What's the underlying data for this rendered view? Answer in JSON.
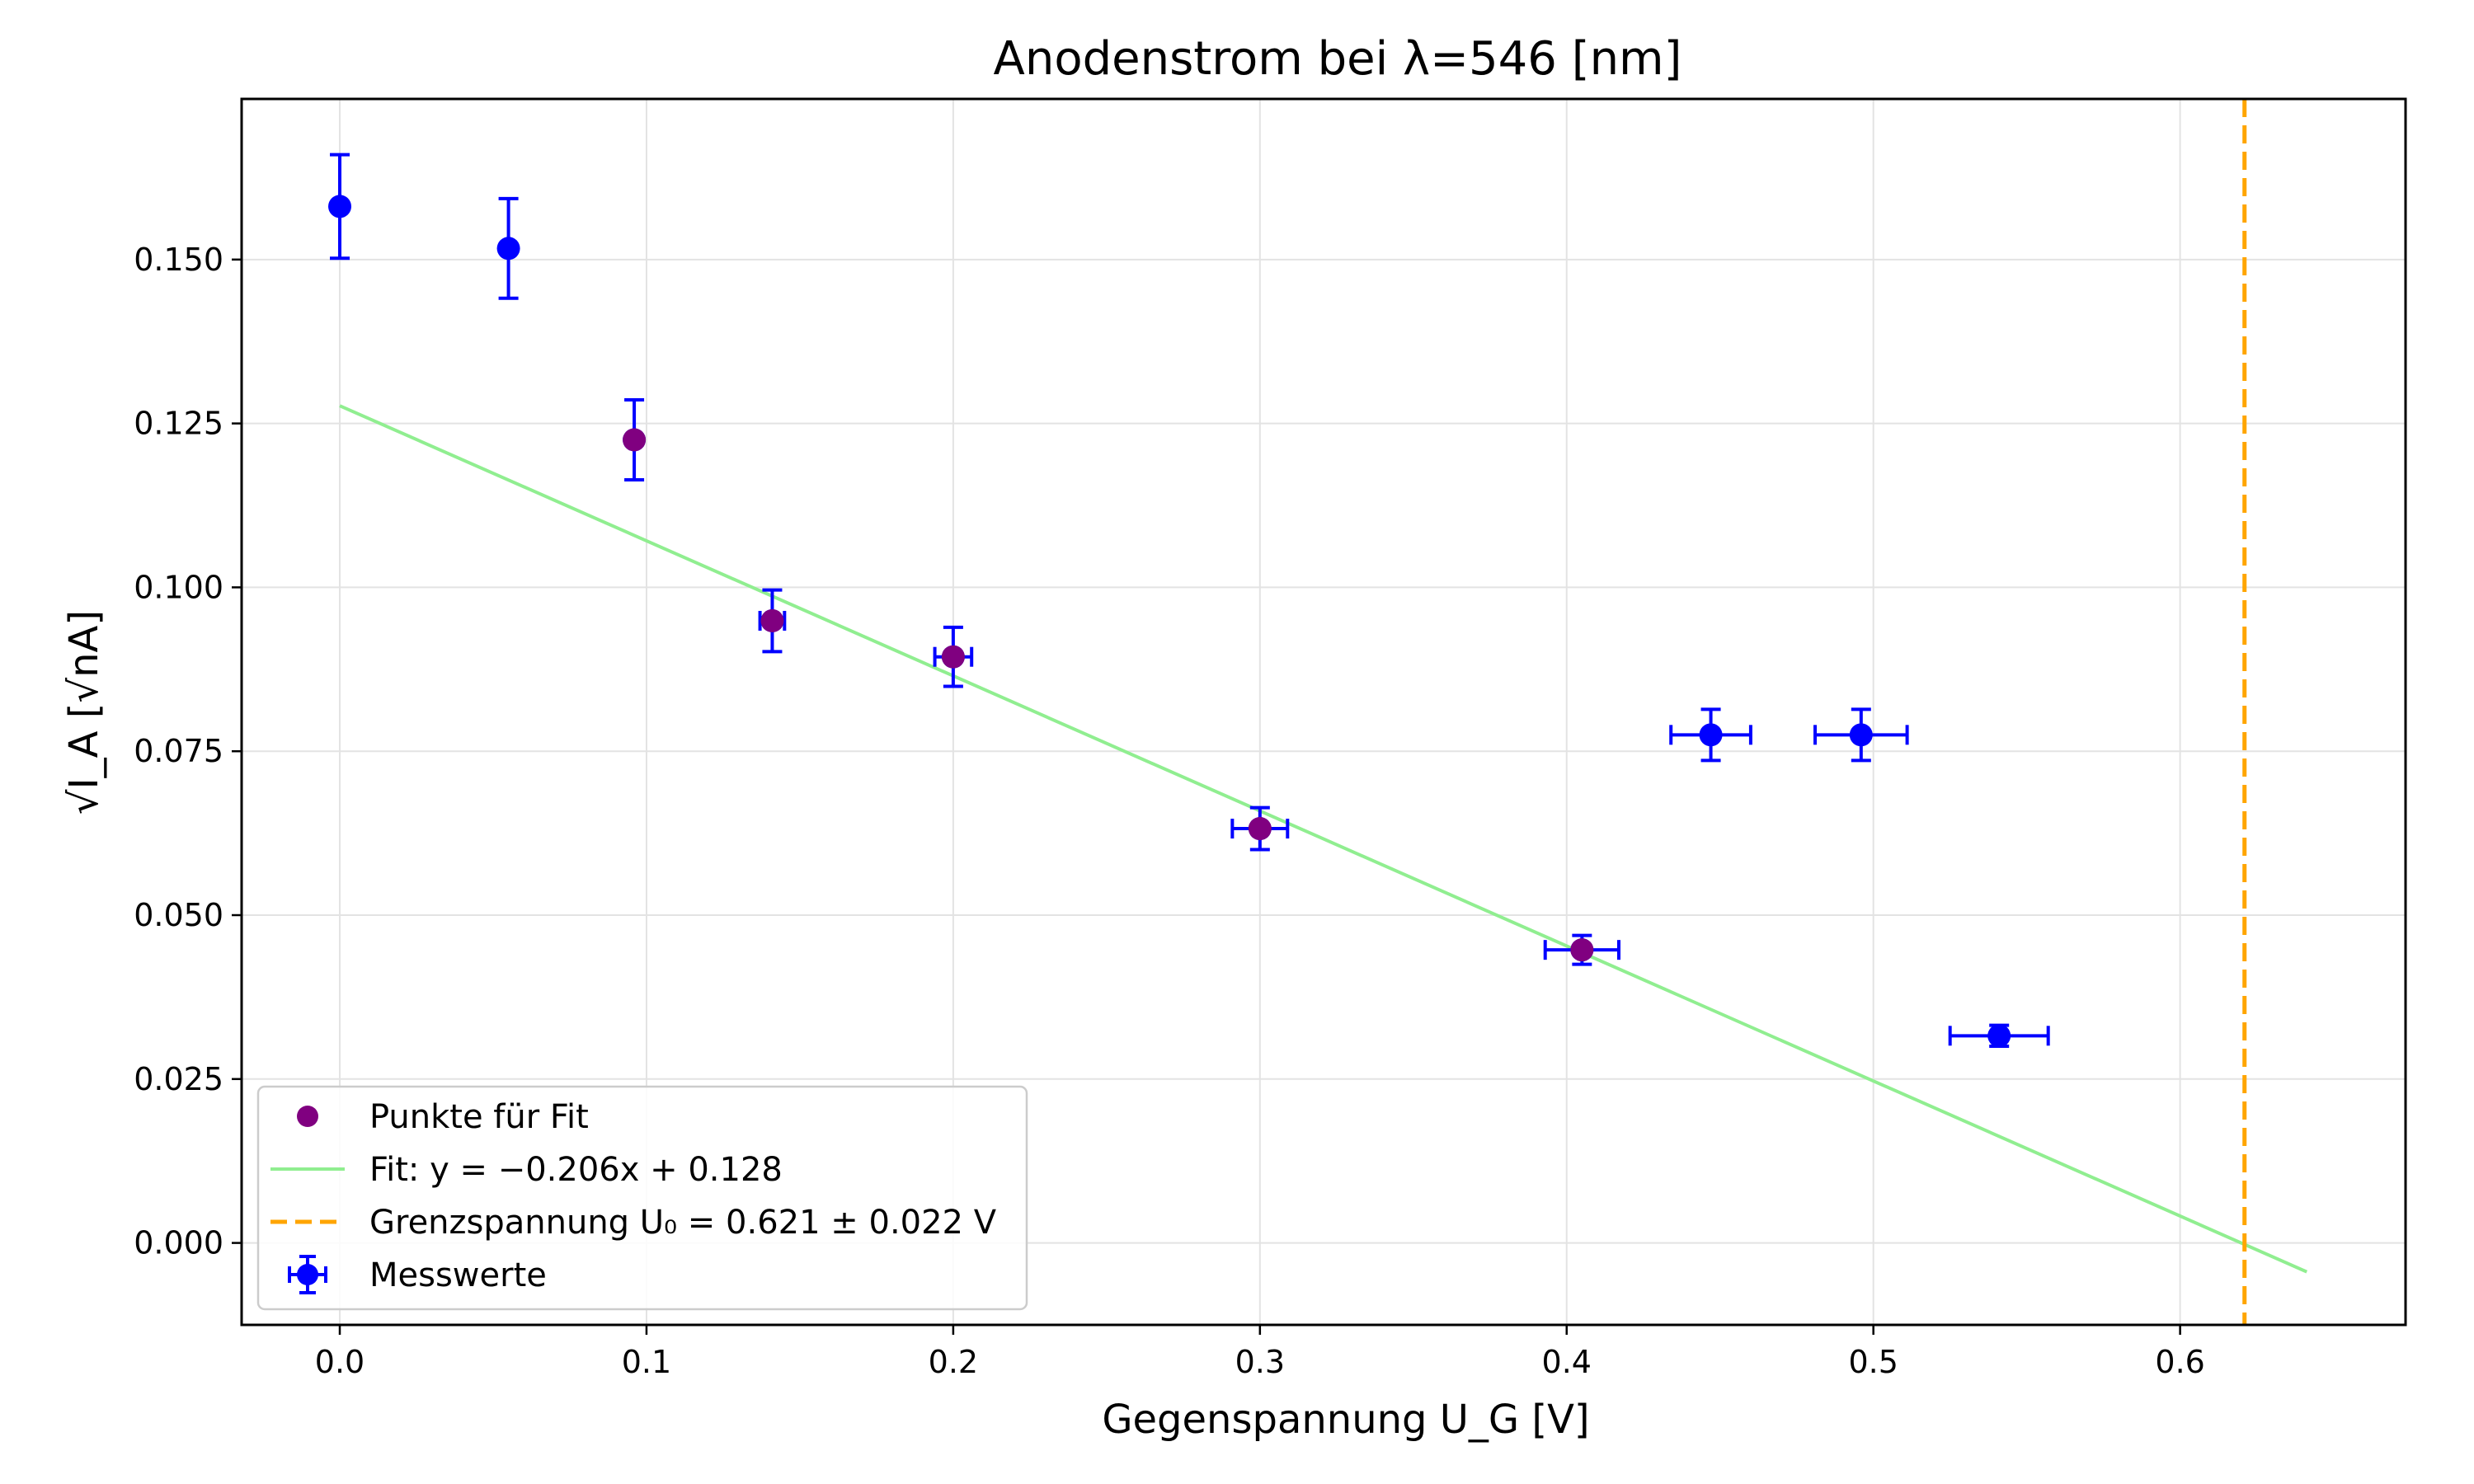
{
  "chart_data": {
    "type": "scatter",
    "title": "Anodenstrom bei λ=546 [nm]",
    "xlabel": "Gegenspannung U_G [V]",
    "ylabel": "√I_A [√nA]",
    "xlim": [
      -0.032,
      0.6735
    ],
    "ylim": [
      -0.0125,
      0.1745
    ],
    "xticks": [
      0.0,
      0.1,
      0.2,
      0.3,
      0.4,
      0.5,
      0.6
    ],
    "xtick_labels": [
      "0.0",
      "0.1",
      "0.2",
      "0.3",
      "0.4",
      "0.5",
      "0.6"
    ],
    "yticks": [
      0.0,
      0.025,
      0.05,
      0.075,
      0.1,
      0.125,
      0.15
    ],
    "ytick_labels": [
      "0.000",
      "0.025",
      "0.050",
      "0.075",
      "0.100",
      "0.125",
      "0.150"
    ],
    "grid": true,
    "legend_position": "lower-left",
    "series": [
      {
        "name": "Messwerte",
        "kind": "errorbar",
        "color": "#0000ff",
        "x": [
          0.0,
          0.055,
          0.096,
          0.141,
          0.2,
          0.3,
          0.405,
          0.447,
          0.496,
          0.541
        ],
        "y": [
          0.1581,
          0.1517,
          0.1225,
          0.0949,
          0.0894,
          0.0632,
          0.0447,
          0.0775,
          0.0775,
          0.0316
        ],
        "xerr": [
          0.0,
          0.0,
          0.0,
          0.004,
          0.006,
          0.009,
          0.012,
          0.013,
          0.015,
          0.016
        ],
        "yerr": [
          0.0079,
          0.0076,
          0.0061,
          0.0047,
          0.0045,
          0.0032,
          0.0022,
          0.0039,
          0.0039,
          0.0016
        ]
      },
      {
        "name": "Punkte für Fit",
        "kind": "scatter",
        "color": "#800080",
        "x": [
          0.096,
          0.141,
          0.2,
          0.3,
          0.405
        ],
        "y": [
          0.1225,
          0.0949,
          0.0894,
          0.0632,
          0.0447
        ]
      },
      {
        "name": "Fit: y = −0.206x + 0.128",
        "kind": "line",
        "color": "#90ee90",
        "slope": -0.206,
        "intercept": 0.1277,
        "x_range": [
          0.0,
          0.6413
        ]
      },
      {
        "name": "Grenzspannung U₀ = 0.621 ± 0.022 V",
        "kind": "vline",
        "color": "#ffa500",
        "x": 0.621
      }
    ],
    "legend": [
      {
        "label": "Punkte für Fit",
        "kind": "scatter",
        "color": "#800080"
      },
      {
        "label": "Fit: y = −0.206x + 0.128",
        "kind": "line",
        "color": "#90ee90"
      },
      {
        "label": "Grenzspannung U₀ = 0.621 ± 0.022 V",
        "kind": "dashed",
        "color": "#ffa500"
      },
      {
        "label": "Messwerte",
        "kind": "errorbar",
        "color": "#0000ff"
      }
    ]
  }
}
